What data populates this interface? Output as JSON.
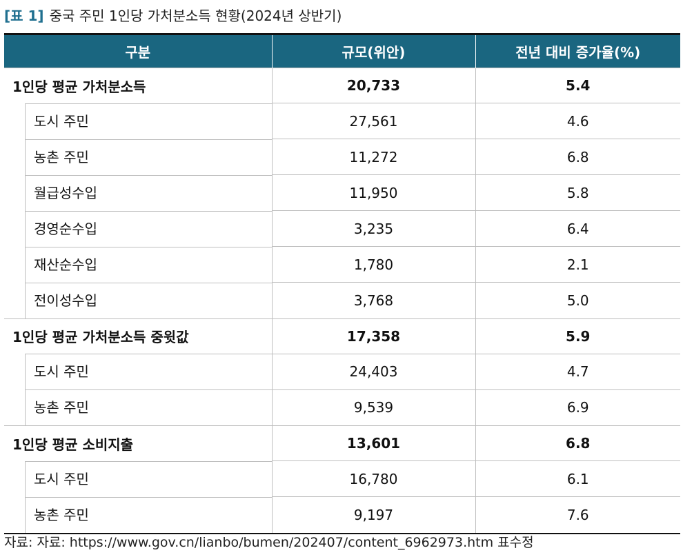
{
  "caption": {
    "tag": "[표 1]",
    "title": "중국 주민 1인당 가처분소득 현황(2024년 상반기)"
  },
  "table": {
    "headers": [
      "구분",
      "규모(위안)",
      "전년 대비 증가율(%)"
    ],
    "rows": [
      {
        "label": "1인당 평균 가처분소득",
        "value": "20,733",
        "rate": "5.4",
        "group": true
      },
      {
        "label": "도시 주민",
        "value": "27,561",
        "rate": "4.6",
        "group": false
      },
      {
        "label": "농촌 주민",
        "value": "11,272",
        "rate": "6.8",
        "group": false
      },
      {
        "label": "월급성수입",
        "value": "11,950",
        "rate": "5.8",
        "group": false
      },
      {
        "label": "경영순수입",
        "value": "3,235",
        "rate": "6.4",
        "group": false
      },
      {
        "label": "재산순수입",
        "value": "1,780",
        "rate": "2.1",
        "group": false
      },
      {
        "label": "전이성수입",
        "value": "3,768",
        "rate": "5.0",
        "group": false
      },
      {
        "label": "1인당 평균 가처분소득 중윗값",
        "value": "17,358",
        "rate": "5.9",
        "group": true
      },
      {
        "label": "도시 주민",
        "value": "24,403",
        "rate": "4.7",
        "group": false
      },
      {
        "label": "농촌 주민",
        "value": "9,539",
        "rate": "6.9",
        "group": false
      },
      {
        "label": "1인당 평균 소비지출",
        "value": "13,601",
        "rate": "6.8",
        "group": true
      },
      {
        "label": "도시 주민",
        "value": "16,780",
        "rate": "6.1",
        "group": false
      },
      {
        "label": "농촌 주민",
        "value": "9,197",
        "rate": "7.6",
        "group": false
      }
    ]
  },
  "source": "자료: 자료: https://www.gov.cn/lianbo/bumen/202407/content_6962973.htm 표수정"
}
